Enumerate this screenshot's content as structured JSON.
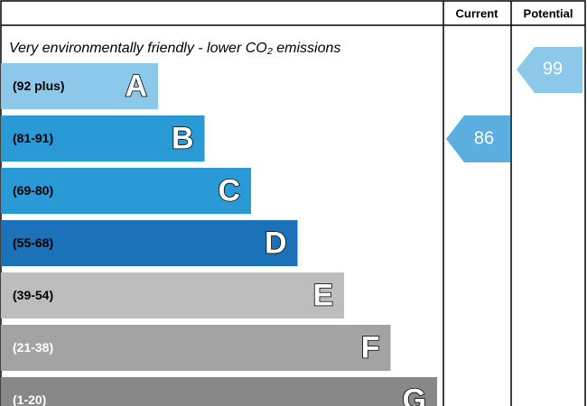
{
  "header": {
    "current": "Current",
    "potential": "Potential"
  },
  "subtitle": "Very environmentally friendly - lower CO₂ emissions",
  "bands": [
    {
      "range": "(92 plus)",
      "letter": "A",
      "color": "#8cc8ea",
      "text_color": "#000000"
    },
    {
      "range": "(81-91)",
      "letter": "B",
      "color": "#2a9ad6",
      "text_color": "#000000"
    },
    {
      "range": "(69-80)",
      "letter": "C",
      "color": "#2a9ad6",
      "text_color": "#000000"
    },
    {
      "range": "(55-68)",
      "letter": "D",
      "color": "#1b72b8",
      "text_color": "#000000"
    },
    {
      "range": "(39-54)",
      "letter": "E",
      "color": "#bdbdbd",
      "text_color": "#000000"
    },
    {
      "range": "(21-38)",
      "letter": "F",
      "color": "#a3a3a3",
      "text_color": "#ffffff"
    },
    {
      "range": "(1-20)",
      "letter": "G",
      "color": "#888888",
      "text_color": "#ffffff"
    }
  ],
  "current": {
    "score": 86,
    "color": "#5aafe0"
  },
  "potential": {
    "score": 99,
    "color": "#8cc8ea"
  }
}
